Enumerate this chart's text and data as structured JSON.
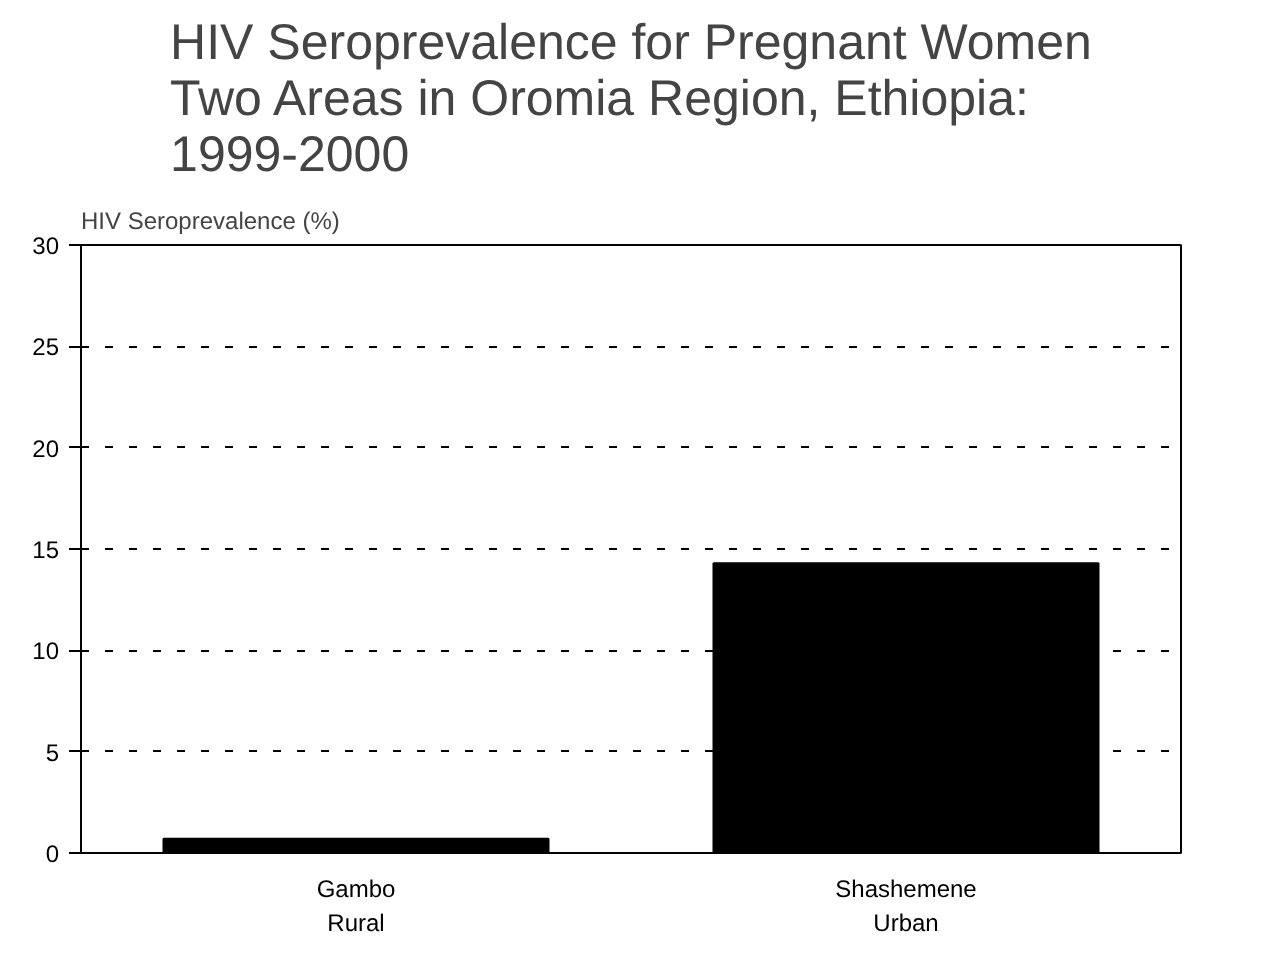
{
  "chart_data": {
    "type": "bar",
    "title": "HIV Seroprevalence for Pregnant Women\nTwo Areas in Oromia Region, Ethiopia:\n1999-2000",
    "ylabel": "HIV Seroprevalence (%)",
    "categories": [
      "Gambo\nRural",
      "Shashemene\nUrban"
    ],
    "values": [
      0.7,
      14.3
    ],
    "color": "#000000",
    "ylim": [
      0,
      30
    ],
    "yticks": [
      0,
      5,
      10,
      15,
      20,
      25,
      30
    ],
    "grid": "y"
  }
}
